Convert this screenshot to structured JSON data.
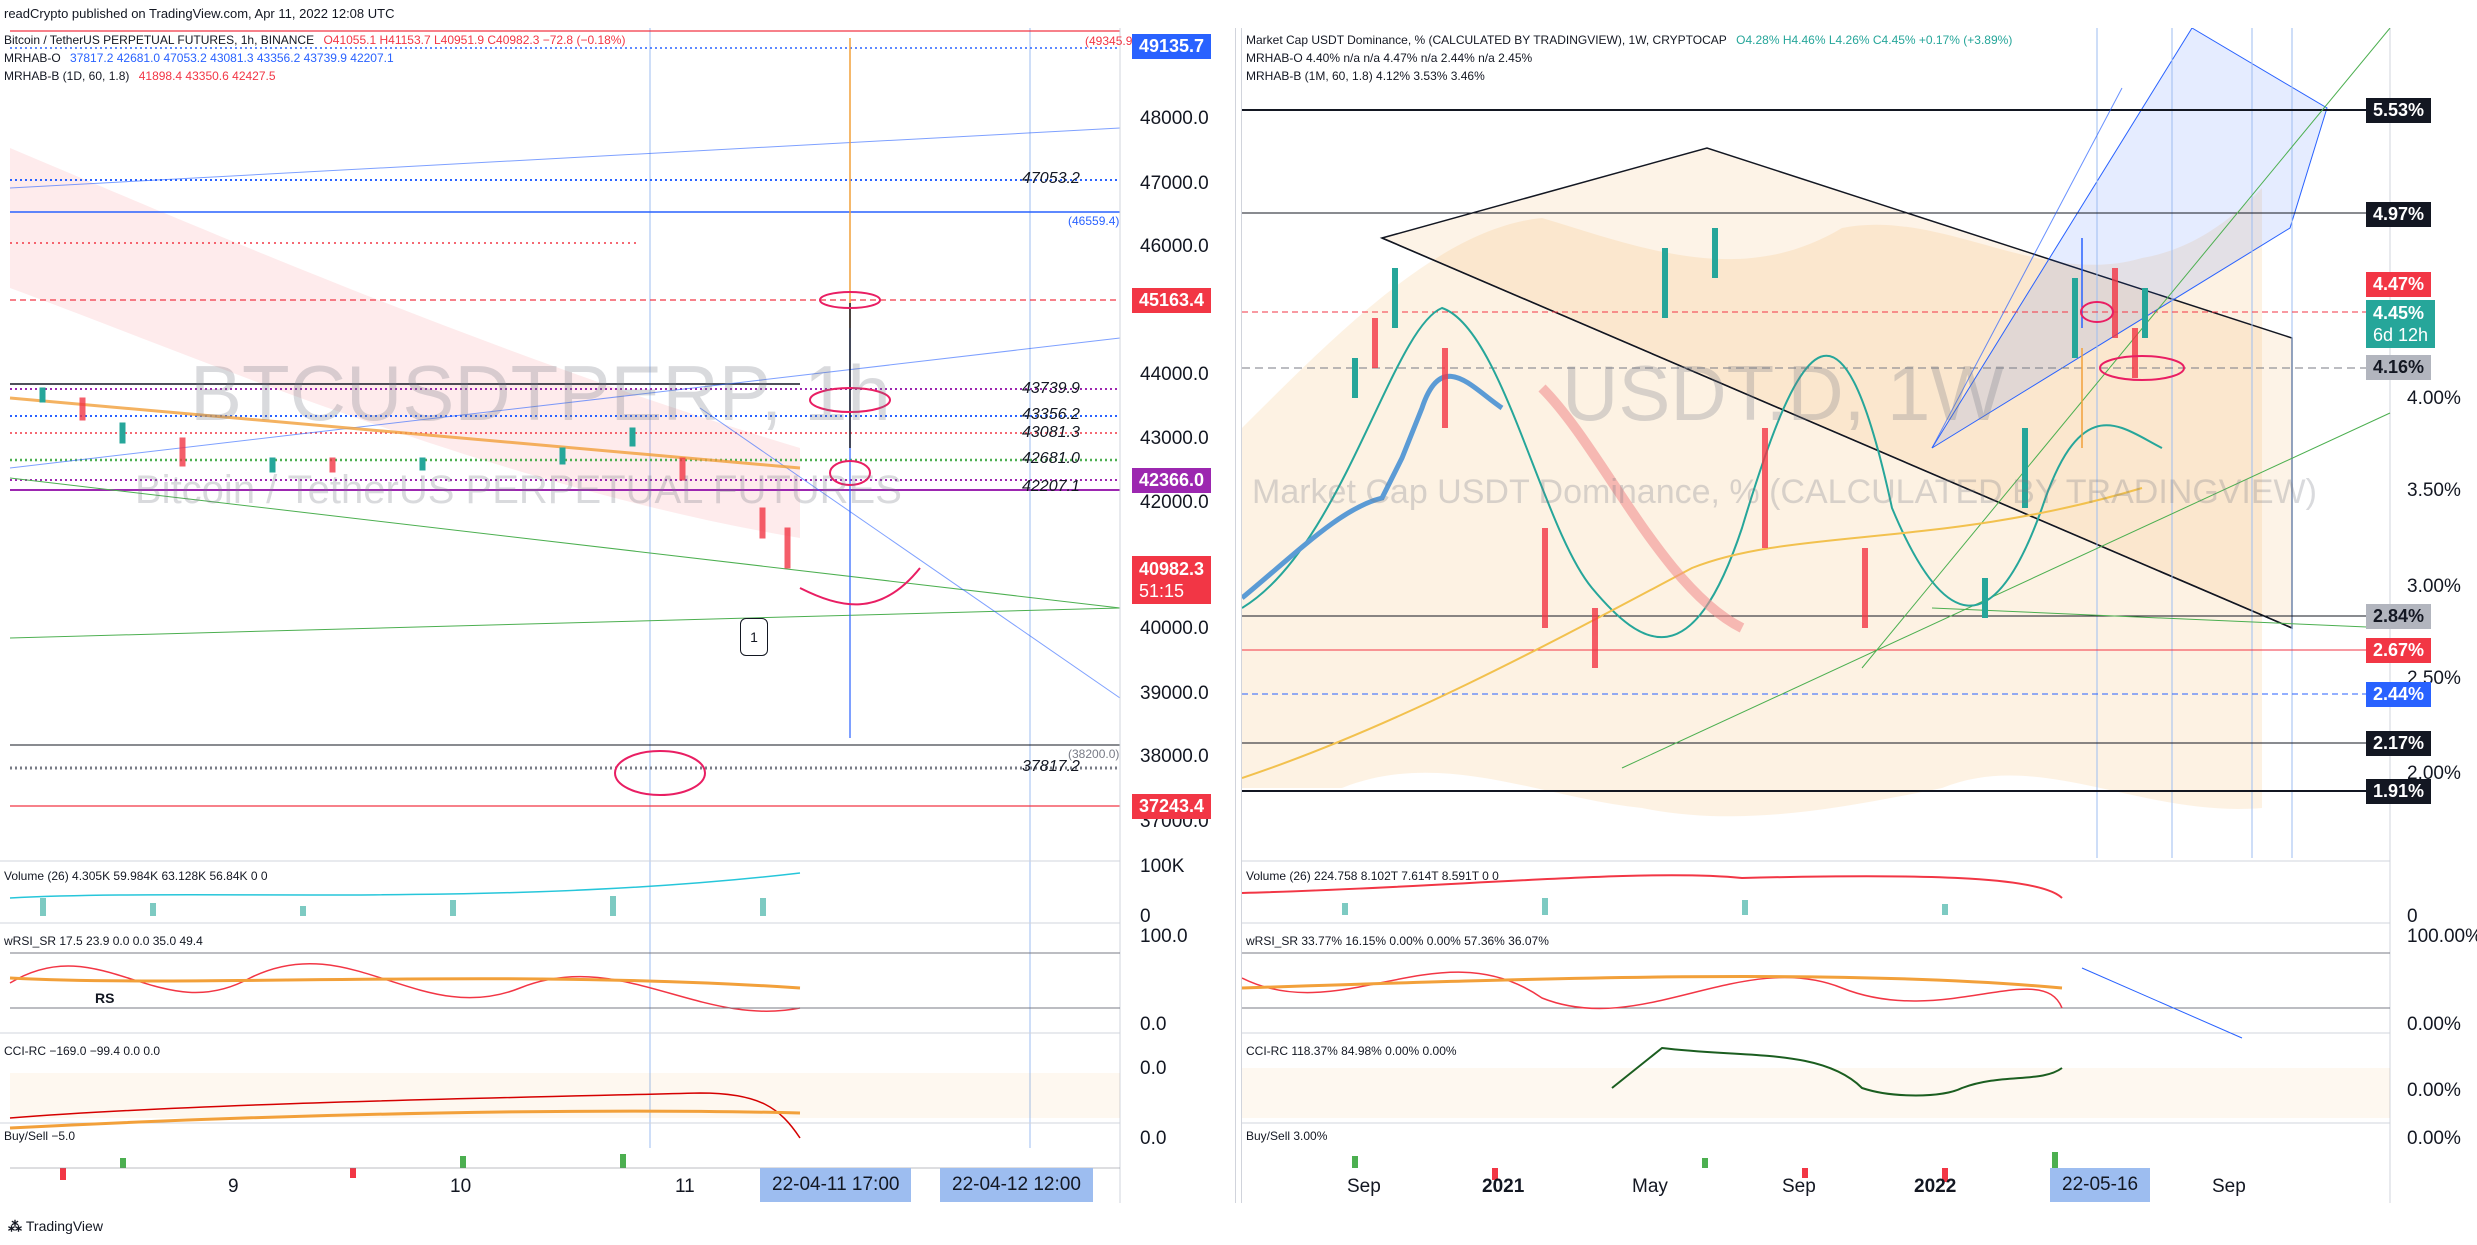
{
  "header": "readCrypto published on TradingView.com, Apr 11, 2022 12:08 UTC",
  "footer": "TradingView",
  "left": {
    "watermark_symbol": "BTCUSDTPERP, 1h",
    "watermark_desc": "Bitcoin / TetherUS PERPETUAL FUTURES",
    "legend_title": "Bitcoin / TetherUS PERPETUAL FUTURES, 1h, BINANCE",
    "legend_ohlc": "O41055.1  H41153.7  L40951.9  C40982.3  −72.8 (−0.18%)",
    "legend_o_name": "MRHAB-O",
    "legend_o_vals": "37817.2  42681.0  47053.2  43081.3  43356.2  43739.9  42207.1",
    "legend_b_name": "MRHAB-B (1D, 60, 1.8)",
    "legend_b_vals": "41898.4  43350.6  42427.5",
    "axis_prices": [
      "48000.0",
      "47000.0",
      "46000.0",
      "44000.0",
      "43000.0",
      "42000.0",
      "40000.0",
      "39000.0",
      "38000.0",
      "37000.0"
    ],
    "tag_top": "49135.7",
    "tag_45163": "45163.4",
    "tag_42366": "42366.0",
    "tag_last": "40982.3",
    "tag_countdown": "51:15",
    "tag_37243": "37243.4",
    "line_labels": {
      "l47053": "47053.2",
      "l46559": "(46559.4)",
      "l43739": "43739.9",
      "l43356": "43356.2",
      "l43081": "43081.3",
      "l42681": "42681.0",
      "l42207": "42207.1",
      "l38200": "(38200.0)",
      "l37817": "37817.2",
      "l49345": "(49345.9)"
    },
    "callout": "1",
    "volume_legend": "Volume (26)  4.305K  59.984K  63.128K  56.84K  0  0",
    "volume_axis_top": "100K",
    "volume_axis_bottom": "0",
    "wrsi_legend": "wRSI_SR  17.5  23.9  0.0  0.0  35.0  49.4",
    "wrsi_axis_top": "100.0",
    "wrsi_axis_bottom": "0.0",
    "rs_label": "RS",
    "cci_legend": "CCI-RC  −169.0  −99.4  0.0  0.0",
    "cci_axis": "0.0",
    "buysell_legend": "Buy/Sell  −5.0",
    "buysell_axis": "0.0",
    "time_labels": [
      "9",
      "10",
      "11"
    ],
    "time_tag_1": "22-04-11   17:00",
    "time_tag_2": "22-04-12   12:00"
  },
  "right": {
    "watermark_symbol": "USDT.D, 1W",
    "watermark_desc": "Market Cap USDT Dominance, % (CALCULATED BY TRADINGVIEW)",
    "legend_title": "Market Cap USDT Dominance, % (CALCULATED BY TRADINGVIEW), 1W, CRYPTOCAP",
    "legend_ohlc": "O4.28%  H4.46%  L4.26%  C4.45%  +0.17% (+3.89%)",
    "legend_o": "MRHAB-O  4.40%  n/a  n/a  4.47%  n/a  2.44%  n/a  2.45%",
    "legend_b": "MRHAB-B (1M, 60, 1.8)  4.12%  3.53%  3.46%",
    "axis_pcts": [
      "4.00%",
      "3.50%",
      "3.00%",
      "2.50%",
      "2.00%"
    ],
    "tag_553": "5.53%",
    "tag_497": "4.97%",
    "tag_447": "4.47%",
    "tag_445": "4.45%",
    "tag_countdown": "6d 12h",
    "tag_416": "4.16%",
    "tag_284": "2.84%",
    "tag_267": "2.67%",
    "tag_244": "2.44%",
    "tag_217": "2.17%",
    "tag_191": "1.91%",
    "volume_legend": "Volume (26)  224.758  8.102T  7.614T  8.591T  0  0",
    "volume_axis": "0",
    "wrsi_legend": "wRSI_SR  33.77%  16.15%  0.00%  0.00%  57.36%  36.07%",
    "wrsi_axis_top": "100.00%",
    "wrsi_axis_bottom": "0.00%",
    "cci_legend": "CCI-RC  118.37%  84.98%  0.00%  0.00%",
    "cci_axis": "0.00%",
    "buysell_legend": "Buy/Sell  3.00%",
    "buysell_axis": "0.00%",
    "time_labels": [
      "Sep",
      "2021",
      "May",
      "Sep",
      "2022",
      "Sep"
    ],
    "time_tag": "22-05-16"
  },
  "colors": {
    "red": "#f23645",
    "blue": "#2962ff",
    "purple": "#9c27b0",
    "green": "#4caf50",
    "pink": "#e91e63",
    "black": "#131722",
    "teal": "#26a69a",
    "gray": "#787b86"
  }
}
